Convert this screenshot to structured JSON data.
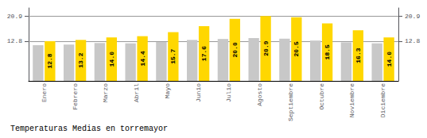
{
  "chart_data": {
    "type": "bar",
    "title": "Temperaturas Medias en torremayor",
    "categories": [
      "Enero",
      "Febrero",
      "Marzo",
      "Abril",
      "Mayo",
      "Junio",
      "Julio",
      "Agosto",
      "Septiembre",
      "Octubre",
      "Noviembre",
      "Diciembre"
    ],
    "series": [
      {
        "color": "#C8C8C8",
        "values": [
          11.5,
          11.7,
          12.2,
          12.1,
          12.5,
          13.2,
          13.5,
          13.8,
          13.6,
          13.0,
          12.4,
          12.1
        ]
      },
      {
        "color": "#FFD700",
        "values": [
          12.8,
          13.2,
          14.0,
          14.4,
          15.7,
          17.6,
          20.0,
          20.9,
          20.5,
          18.5,
          16.3,
          14.0
        ],
        "data_labels": true,
        "value_labels": [
          "12.8",
          "13.2",
          "14.0",
          "14.4",
          "15.7",
          "17.6",
          "20.0",
          "20.9",
          "20.5",
          "18.5",
          "16.3",
          "14.0"
        ]
      }
    ],
    "ylim": [
      0,
      23.5
    ],
    "yticks": [
      12.8,
      20.9
    ],
    "y2lim": [
      0,
      23.5
    ],
    "y2ticks": [
      12.8,
      20.9
    ],
    "grid": true
  }
}
